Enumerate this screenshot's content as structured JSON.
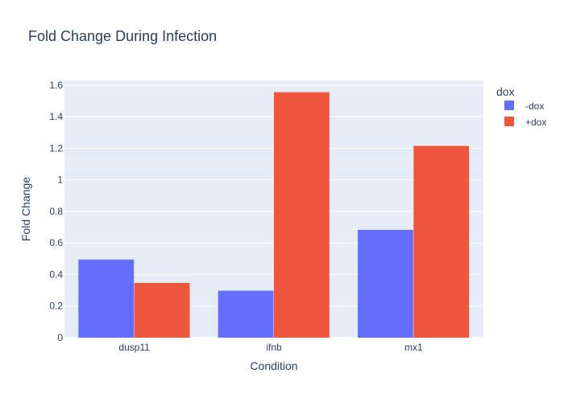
{
  "chart_data": {
    "type": "bar",
    "title": "Fold Change During Infection",
    "xlabel": "Condition",
    "ylabel": "Fold Change",
    "categories": [
      "dusp11",
      "ifnb",
      "mx1"
    ],
    "series": [
      {
        "name": "-dox",
        "values": [
          0.495,
          0.298,
          0.683
        ],
        "color": "#636efa"
      },
      {
        "name": "+dox",
        "values": [
          0.347,
          1.555,
          1.215
        ],
        "color": "#ef553b"
      }
    ],
    "ylim": [
      0,
      1.63
    ],
    "yticks": [
      {
        "value": 0,
        "label": "0"
      },
      {
        "value": 0.2,
        "label": "0.2"
      },
      {
        "value": 0.4,
        "label": "0.4"
      },
      {
        "value": 0.6,
        "label": "0.6"
      },
      {
        "value": 0.8,
        "label": "0.8"
      },
      {
        "value": 1,
        "label": "1"
      },
      {
        "value": 1.2,
        "label": "1.2"
      },
      {
        "value": 1.4,
        "label": "1.4"
      },
      {
        "value": 1.6,
        "label": "1.6"
      }
    ],
    "legend": {
      "title": "dox",
      "position": "top-right"
    },
    "grid": true,
    "colors": {
      "plot_bg": "#e5ecf6",
      "grid": "#ffffff",
      "text": "#2a3f5f"
    }
  }
}
